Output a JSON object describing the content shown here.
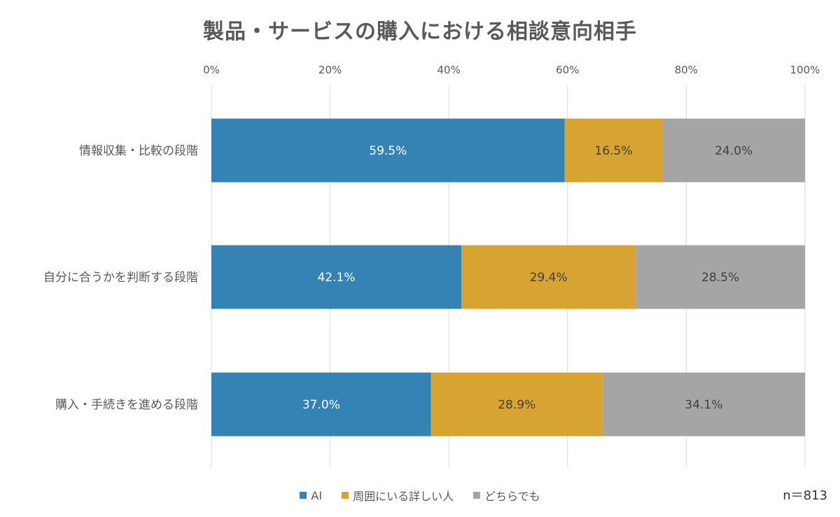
{
  "chart_data": {
    "type": "bar",
    "orientation": "horizontal-stacked-percent",
    "title": "製品・サービスの購入における相談意向相手",
    "categories": [
      "情報収集・比較の段階",
      "自分に合うかを判断する段階",
      "購入・手続きを進める段階"
    ],
    "series": [
      {
        "name": "AI",
        "color": "#3583B5",
        "values": [
          59.5,
          42.1,
          37.0
        ],
        "labels": [
          "59.5%",
          "42.1%",
          "37.0%"
        ],
        "label_color": "#ffffff"
      },
      {
        "name": "周囲にいる詳しい人",
        "color": "#D7A431",
        "values": [
          16.5,
          29.4,
          28.9
        ],
        "labels": [
          "16.5%",
          "29.4%",
          "28.9%"
        ],
        "label_color": "#404040"
      },
      {
        "name": "どちらでも",
        "color": "#A5A5A5",
        "values": [
          24.0,
          28.5,
          34.1
        ],
        "labels": [
          "24.0%",
          "28.5%",
          "34.1%"
        ],
        "label_color": "#404040"
      }
    ],
    "xlim": [
      0,
      100
    ],
    "xticks": [
      0,
      20,
      40,
      60,
      80,
      100
    ],
    "xtick_labels": [
      "0%",
      "20%",
      "40%",
      "60%",
      "80%",
      "100%"
    ],
    "xaxis_position": "top",
    "grid": true,
    "legend_position": "bottom",
    "annotation": "n＝813"
  }
}
